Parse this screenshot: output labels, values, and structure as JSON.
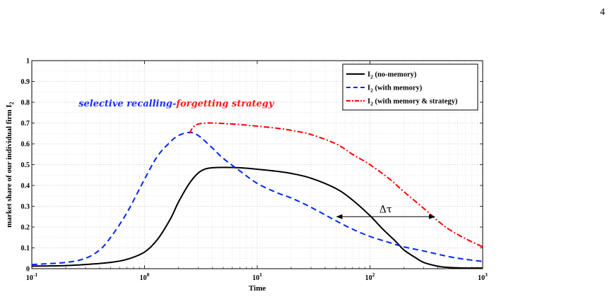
{
  "page_number": "4",
  "chart_data": {
    "type": "line",
    "xlabel": "Time",
    "ylabel": "market share of our individual firm I",
    "ylabel_sub": "2",
    "xscale": "log",
    "xlim": [
      0.1,
      1000
    ],
    "ylim": [
      0,
      1
    ],
    "x_ticks": [
      {
        "value": 0.1,
        "base": "10",
        "exp": "-1"
      },
      {
        "value": 1,
        "base": "10",
        "exp": "0"
      },
      {
        "value": 10,
        "base": "10",
        "exp": "1"
      },
      {
        "value": 100,
        "base": "10",
        "exp": "2"
      },
      {
        "value": 1000,
        "base": "10",
        "exp": "3"
      }
    ],
    "y_ticks": [
      "0",
      "0.1",
      "0.2",
      "0.3",
      "0.4",
      "0.5",
      "0.6",
      "0.7",
      "0.8",
      "0.9",
      "1"
    ],
    "grid": true,
    "legend_position": "top-right",
    "series": [
      {
        "name_main": "I",
        "name_sub": "2",
        "name_rest": " (no-memory)",
        "color": "#000000",
        "style": "solid",
        "x": [
          0.1,
          0.2,
          0.3,
          0.5,
          0.7,
          1.0,
          1.3,
          1.7,
          2.0,
          2.5,
          3.0,
          3.5,
          4.0,
          5.0,
          7.0,
          10,
          15,
          20,
          30,
          50,
          70,
          100,
          130,
          170,
          200,
          250,
          300,
          400,
          500,
          700,
          1000
        ],
        "y": [
          0.012,
          0.015,
          0.02,
          0.03,
          0.045,
          0.08,
          0.14,
          0.24,
          0.32,
          0.41,
          0.46,
          0.48,
          0.485,
          0.487,
          0.485,
          0.478,
          0.468,
          0.458,
          0.435,
          0.385,
          0.33,
          0.255,
          0.19,
          0.13,
          0.09,
          0.055,
          0.03,
          0.012,
          0.006,
          0.003,
          0.003
        ]
      },
      {
        "name_main": "I",
        "name_sub": "2",
        "name_rest": " (with memory)",
        "color": "#0026ff",
        "style": "dashed",
        "x": [
          0.1,
          0.2,
          0.3,
          0.4,
          0.5,
          0.7,
          1.0,
          1.3,
          1.7,
          2.0,
          2.5,
          3.0,
          4.0,
          5.0,
          7.0,
          10,
          15,
          20,
          30,
          50,
          70,
          100,
          150,
          200,
          300,
          500,
          700,
          1000
        ],
        "y": [
          0.02,
          0.03,
          0.05,
          0.09,
          0.15,
          0.27,
          0.43,
          0.54,
          0.61,
          0.64,
          0.655,
          0.64,
          0.58,
          0.53,
          0.47,
          0.41,
          0.365,
          0.34,
          0.295,
          0.23,
          0.19,
          0.155,
          0.125,
          0.105,
          0.085,
          0.058,
          0.045,
          0.035
        ]
      },
      {
        "name_main": "I",
        "name_sub": "2",
        "name_rest": " (with memory & strategy)",
        "color": "#ff0000",
        "style": "dashdot",
        "x": [
          2.5,
          2.7,
          3.0,
          3.5,
          4.0,
          5.0,
          7.0,
          10,
          15,
          20,
          30,
          50,
          70,
          100,
          150,
          200,
          300,
          400,
          500,
          700,
          1000
        ],
        "y": [
          0.65,
          0.68,
          0.695,
          0.7,
          0.7,
          0.698,
          0.693,
          0.685,
          0.675,
          0.665,
          0.645,
          0.6,
          0.55,
          0.5,
          0.43,
          0.37,
          0.29,
          0.23,
          0.19,
          0.145,
          0.105
        ]
      }
    ],
    "annotation": {
      "text_part1": "selective recalling-",
      "text_part2": "forgetting strategy",
      "color_part1": "#1a2fff",
      "color_part2": "#ff1a1a",
      "x": 0.26,
      "y": 0.78
    },
    "delta_tau": {
      "label": "Δτ",
      "x_from": 50,
      "x_to": 380,
      "y": 0.25
    }
  }
}
